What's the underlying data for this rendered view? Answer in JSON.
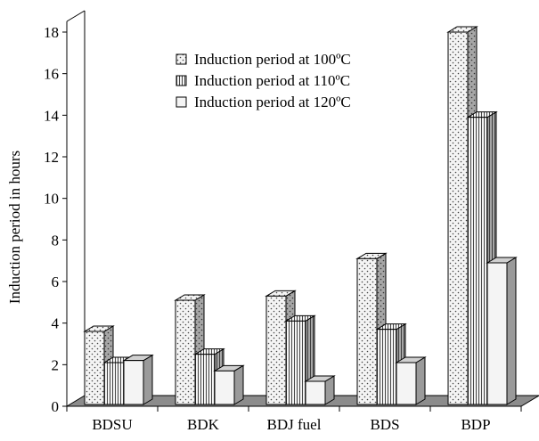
{
  "chart_data": {
    "type": "bar",
    "title": "",
    "xlabel": "",
    "ylabel": "Induction period in hours",
    "ylim": [
      0,
      18
    ],
    "yticks": [
      0,
      2,
      4,
      6,
      8,
      10,
      12,
      14,
      16,
      18
    ],
    "categories": [
      "BDSU",
      "BDK",
      "BDJ fuel",
      "BDS",
      "BDP"
    ],
    "series": [
      {
        "name": "Induction period at 100ºC",
        "values": [
          3.6,
          5.1,
          5.3,
          7.1,
          18.0
        ],
        "pattern": "dots"
      },
      {
        "name": "Induction period at 110ºC",
        "values": [
          2.1,
          2.5,
          4.1,
          3.7,
          13.9
        ],
        "pattern": "vertical-lines"
      },
      {
        "name": "Induction period at 120ºC",
        "values": [
          2.2,
          1.7,
          1.2,
          2.1,
          6.9
        ],
        "pattern": "plain"
      }
    ],
    "grid": false,
    "legend_position": "top-center",
    "style": "3d-bars-with-grey-floor",
    "colors": {
      "bar_fill": "#f4f4f4",
      "bar_side": "#9a9a9a",
      "bar_top": "#c8c8c8",
      "floor": "#8c8c8c",
      "axis": "#000000"
    }
  }
}
